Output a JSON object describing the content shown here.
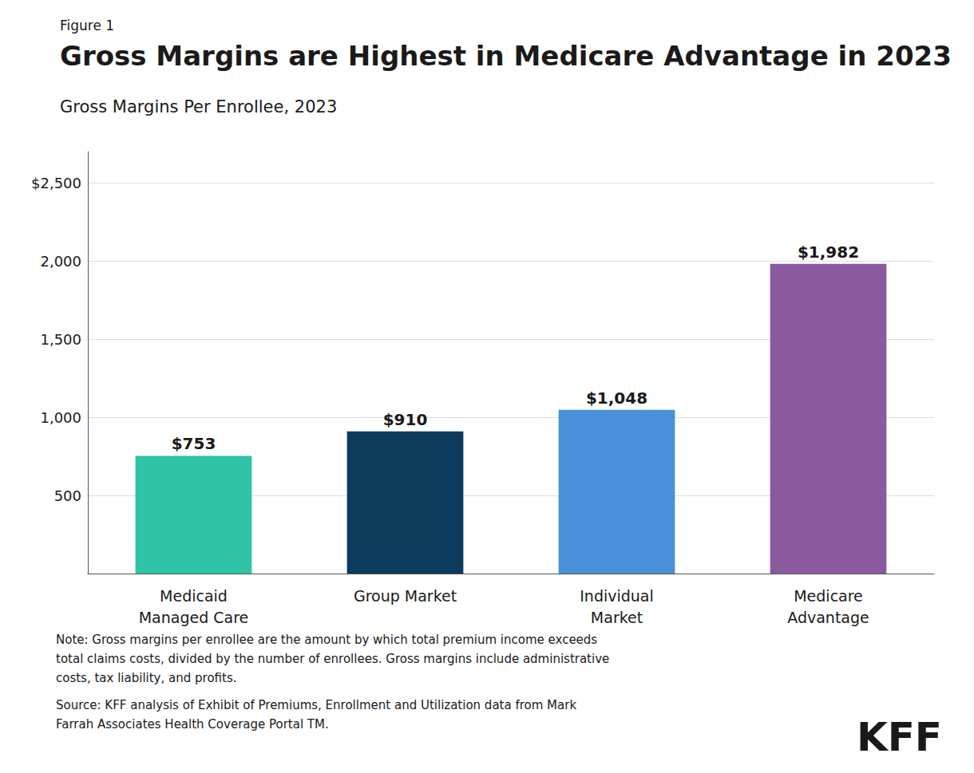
{
  "chart_data": {
    "type": "bar",
    "figure_label": "Figure 1",
    "title": "Gross Margins are Highest in Medicare Advantage in 2023",
    "subtitle": "Gross Margins Per Enrollee, 2023",
    "categories": [
      "Medicaid\nManaged Care",
      "Group Market",
      "Individual\nMarket",
      "Medicare\nAdvantage"
    ],
    "values": [
      753,
      910,
      1048,
      1982
    ],
    "value_labels": [
      "$753",
      "$910",
      "$1,048",
      "$1,982"
    ],
    "data_labels": true,
    "colors": [
      "#2ec4a5",
      "#0d3b5e",
      "#4a90d9",
      "#8b5a9e"
    ],
    "ylim": [
      0,
      2700
    ],
    "yticks": [
      {
        "value": 0,
        "label": ""
      },
      500,
      {
        "value": 1000,
        "label": "1,000"
      },
      {
        "value": 1500,
        "label": "1,500"
      },
      {
        "value": 2000,
        "label": "2,000"
      },
      {
        "value": 2500,
        "label": "$2,500"
      }
    ],
    "grid": true,
    "note": "Note: Gross margins per enrollee are the amount by which total premium income exceeds\ntotal claims costs, divided by the number of enrollees. Gross margins include administrative\ncosts, tax liability, and profits.",
    "source": "Source: KFF analysis of Exhibit of Premiums, Enrollment and Utilization data from Mark\nFarrah Associates Health Coverage Portal TM.",
    "logo": "KFF"
  }
}
